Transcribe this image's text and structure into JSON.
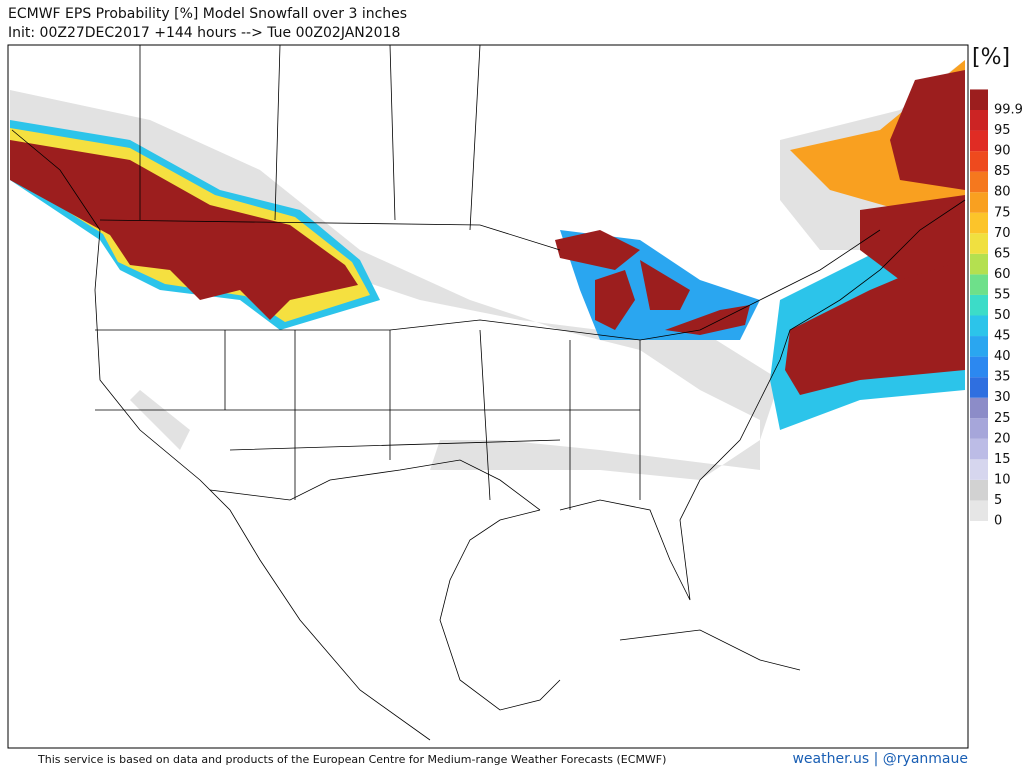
{
  "header": {
    "title": "ECMWF EPS Probability [%] Model Snowfall over 3 inches",
    "subtitle": "Init: 00Z27DEC2017 +144 hours --> Tue 00Z02JAN2018"
  },
  "colorbar": {
    "unit": "[%]",
    "levels": [
      0,
      5,
      10,
      15,
      20,
      25,
      30,
      35,
      40,
      45,
      50,
      55,
      60,
      65,
      70,
      75,
      80,
      85,
      90,
      95,
      99.9
    ],
    "colors": [
      "#e6e6e6",
      "#d2d2d2",
      "#d6d6ee",
      "#bcbce6",
      "#a6a6da",
      "#8c8cc8",
      "#2f6fe0",
      "#2c88f0",
      "#2aa6f0",
      "#2cc4ea",
      "#3cdcc8",
      "#6ee08a",
      "#b4e050",
      "#f0e040",
      "#fcc42a",
      "#f9a020",
      "#f5781e",
      "#ee4a1e",
      "#e02c24",
      "#cc2424",
      "#9c1e1e"
    ]
  },
  "footer": {
    "credit": "This service is based on data and products of the European Centre for Medium-range Weather Forecasts (ECMWF)",
    "brand": "weather.us | @ryanmaue"
  }
}
